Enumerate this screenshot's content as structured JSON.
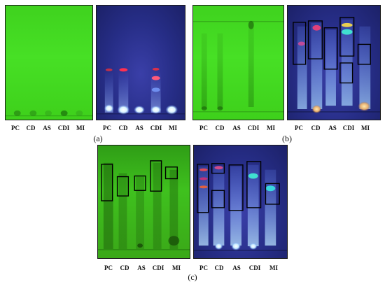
{
  "lanes": [
    "PC",
    "CD",
    "AS",
    "CDI",
    "MI"
  ],
  "captions": {
    "a": "(a)",
    "b": "(b)",
    "c": "(c)"
  },
  "colors": {
    "green_plate": "#44da22",
    "uv_plate": "#262d86",
    "highlight_box": "#000000"
  }
}
